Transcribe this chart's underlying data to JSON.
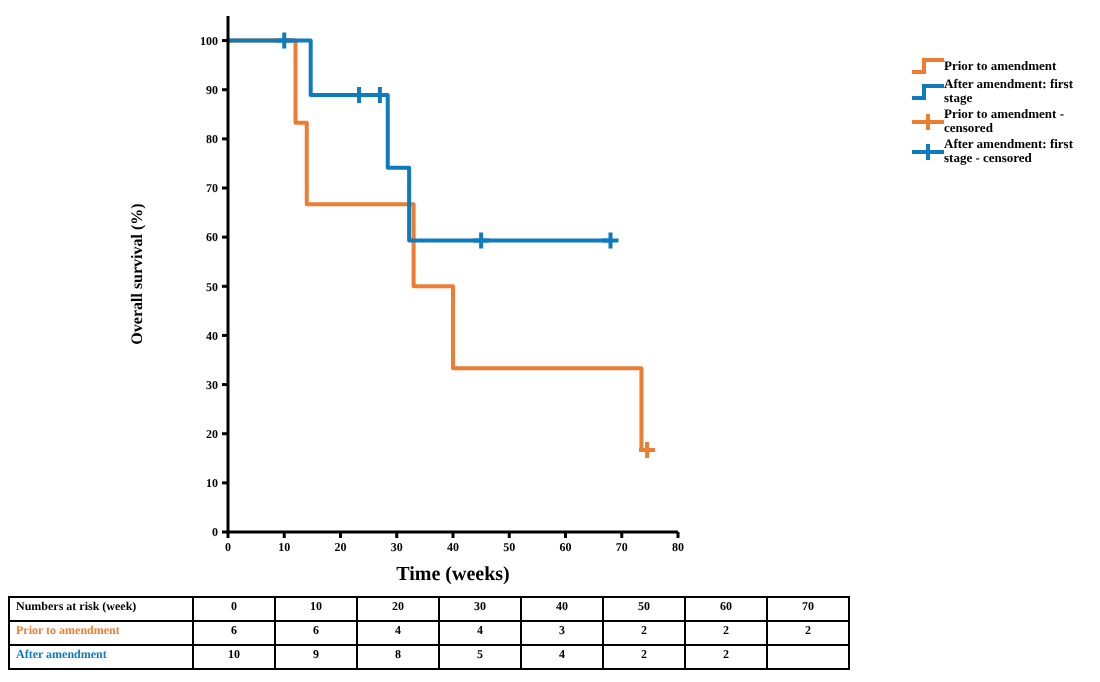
{
  "chart_data": {
    "type": "step",
    "xlabel": "Time (weeks)",
    "ylabel": "Overall survival (%)",
    "xlim": [
      0,
      80
    ],
    "xticks": [
      0,
      10,
      20,
      30,
      40,
      50,
      60,
      70,
      80
    ],
    "ylim": [
      0,
      105
    ],
    "yticks": [
      0,
      10,
      20,
      30,
      40,
      50,
      60,
      70,
      80,
      90,
      100
    ],
    "grid": false,
    "legend": "top right",
    "line_style": "solid",
    "series": [
      {
        "name": "Prior to amendment",
        "color": "#ed7d31",
        "x": [
          0,
          12,
          14,
          33,
          40,
          73.5,
          74.5
        ],
        "values": [
          100,
          83.3,
          66.7,
          50,
          33.3,
          16.7,
          16.7
        ]
      },
      {
        "name": "After amendment: first stage",
        "color": "#0e7bbf",
        "x": [
          0,
          14.7,
          28.4,
          32.2,
          68
        ],
        "values": [
          100,
          88.9,
          74.1,
          59.3,
          59.3
        ]
      },
      {
        "name": "Prior to amendment - censored",
        "color": "#ed7d31",
        "type": "scatter",
        "marker": "cross",
        "x": [
          74.5
        ],
        "values": [
          16.7
        ]
      },
      {
        "name": "After amendment: first stage - censored",
        "color": "#0e7bbf",
        "type": "scatter",
        "marker": "cross",
        "x": [
          10,
          23.3,
          27,
          45,
          68
        ],
        "values": [
          100,
          88.9,
          88.9,
          59.3,
          59.3
        ]
      }
    ],
    "annotations": [
      "Numbers at risk (week)",
      "0",
      "10",
      "20",
      "30",
      "40",
      "50",
      "60",
      "70",
      "Prior to amendment",
      "6",
      "6",
      "4",
      "4",
      "3",
      "2",
      "2",
      "2",
      "After amendment",
      "10",
      "9",
      "8",
      "5",
      "4",
      "2",
      "2"
    ]
  }
}
